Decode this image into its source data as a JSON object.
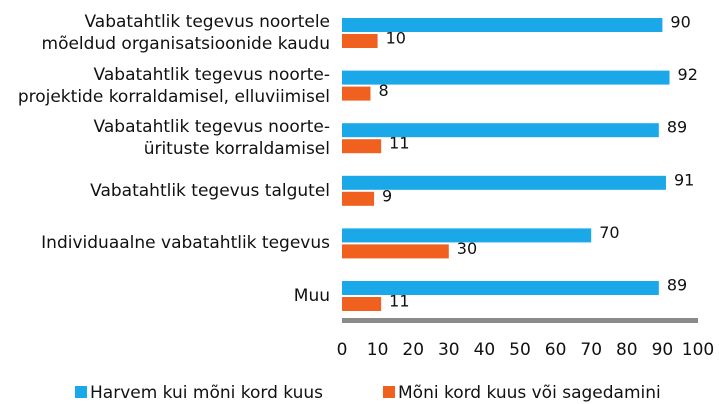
{
  "chart_data": {
    "type": "hbar",
    "categories": [
      "Vabatahtlik tegevus noortele\nmõeldud organisatsioonide kaudu",
      "Vabatahtlik tegevus noorte-\nprojektide korraldamisel, elluviimisel",
      "Vabatahtlik tegevus noorte-\nürituste korraldamisel",
      "Vabatahtlik tegevus talgutel",
      "Individuaalne vabatahtlik tegevus",
      "Muu"
    ],
    "series": [
      {
        "name": "Harvem kui mõni kord kuus",
        "color": "#1ba8e8",
        "values": [
          90,
          92,
          89,
          91,
          70,
          89
        ]
      },
      {
        "name": "Mõni kord kuus või sagedamini",
        "color": "#f0601e",
        "values": [
          10,
          8,
          11,
          9,
          30,
          11
        ]
      }
    ],
    "xlim": [
      0,
      100
    ],
    "xticks": [
      0,
      10,
      20,
      30,
      40,
      50,
      60,
      70,
      80,
      90,
      100
    ]
  }
}
